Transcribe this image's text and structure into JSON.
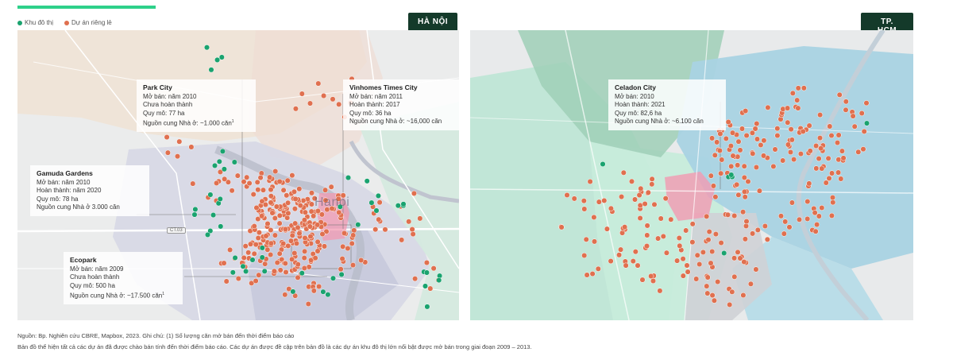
{
  "legend": {
    "items": [
      {
        "label": "Khu đô thị",
        "color": "#1aa36f"
      },
      {
        "label": "Dự án riêng lẻ",
        "color": "#e0704f"
      }
    ]
  },
  "colors": {
    "accent": "#2ed18a",
    "tag_bg": "#143a2a",
    "urban_area": "#1aa36f",
    "single_project": "#e0704f",
    "hcm_district_highlight": "#f29ab2",
    "hanoi_center_highlight": "#f29ab2"
  },
  "maps": {
    "hanoi": {
      "tag": "HÀ NỘI",
      "city_label": "Hanoi",
      "road_label": "CT.03",
      "projects": [
        {
          "name": "Park City",
          "lines": [
            "Mở bán: năm 2010",
            "Chưa hoàn thành",
            "Quy mô: 77 ha",
            "Nguồn cung Nhà ở: ~1.000 căn"
          ],
          "footnote": "1"
        },
        {
          "name": "Vinhomes Times City",
          "lines": [
            "Mở bán: năm 2011",
            "Hoàn thành: 2017",
            "Quy mô: 36 ha",
            "Nguồn cung Nhà ở: ~16,000 căn"
          ],
          "footnote": ""
        },
        {
          "name": "Gamuda Gardens",
          "lines": [
            "Mở bán: năm 2010",
            "Hoàn thành: năm 2020",
            "Quy mô: 78 ha",
            "Nguồn cung Nhà ở 3.000 căn"
          ],
          "footnote": ""
        },
        {
          "name": "Ecopark",
          "lines": [
            "Mở bán: năm 2009",
            "Chưa hoàn thành",
            "Quy mô: 500 ha",
            "Nguồn cung Nhà ở: ~17.500 căn"
          ],
          "footnote": "1"
        }
      ]
    },
    "hcm": {
      "tag": "TP. HCM",
      "projects": [
        {
          "name": "Celadon City",
          "lines": [
            "Mở bán: 2010",
            "Hoàn thành: 2021",
            "Quy mô: 82,6 ha",
            "Nguồn cung Nhà ở: ~6.100 căn"
          ],
          "footnote": ""
        }
      ]
    }
  },
  "footer": {
    "line1": "Nguồn: Bp. Nghiên cứu CBRE, Mapbox, 2023. Ghi chú: (1) Số lượng căn mở bán đến thời điểm báo cáo",
    "line2": "Bản đồ thể hiện tất cả các dự án đã được chào bán tính đến thời điểm báo cáo. Các dự án được đề cập trên bản đồ là các dự án khu đô thị lớn nổi bật được mở bán trong giai đoạn 2009 – 2013."
  }
}
